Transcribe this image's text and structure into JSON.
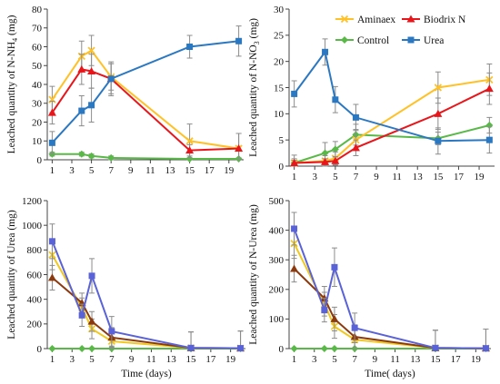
{
  "colors": {
    "Aminaex": "#FFC125",
    "Biodrix N": "#E8161B",
    "Control": "#58B947",
    "Urea": "#2B78C2",
    "Urea_bottom": "#5A62D8",
    "Biodrix_bottom": "#8B3A10",
    "Aminaex_bottom": "#F0C820",
    "errbar": "#8c8c8c"
  },
  "legend": {
    "position": "top-right of the N-NO3 panel",
    "items": [
      {
        "name": "Aminaex",
        "marker": "x",
        "color_key": "Aminaex"
      },
      {
        "name": "Biodrix N",
        "marker": "triangle",
        "color_key": "Biodrix N"
      },
      {
        "name": "Control",
        "marker": "diamond",
        "color_key": "Control"
      },
      {
        "name": "Urea",
        "marker": "square",
        "color_key": "Urea"
      }
    ]
  },
  "chart_data": [
    {
      "type": "line",
      "panel": "top-left",
      "ylabel_pre": "Leached quantity of N-NH",
      "ylabel_sub": "4",
      "ylabel_post": " (mg)",
      "xlabel": "",
      "xlim": [
        0.5,
        20.5
      ],
      "ylim": [
        0,
        80
      ],
      "x_ticks": [
        1,
        3,
        5,
        7,
        9,
        11,
        13,
        15,
        17,
        19
      ],
      "y_ticks": [
        0,
        10,
        20,
        30,
        40,
        50,
        60,
        70,
        80
      ],
      "x": [
        1,
        4,
        5,
        7,
        15,
        20
      ],
      "series": [
        {
          "name": "Aminaex",
          "marker": "x",
          "values": [
            32,
            55,
            58,
            44,
            10,
            6
          ],
          "errors": [
            7,
            8,
            8,
            7,
            9,
            8
          ]
        },
        {
          "name": "Biodrix N",
          "marker": "triangle",
          "values": [
            25,
            48,
            47,
            43,
            5,
            6
          ],
          "errors": [
            6,
            8,
            9,
            8,
            3,
            8
          ]
        },
        {
          "name": "Control",
          "marker": "diamond",
          "values": [
            3,
            3,
            2,
            1,
            0.5,
            0.5
          ],
          "errors": [
            1,
            1,
            1,
            1,
            0.5,
            0.5
          ]
        },
        {
          "name": "Urea",
          "marker": "square",
          "values": [
            9,
            26,
            29,
            43,
            60,
            63
          ],
          "errors": [
            6,
            8,
            9,
            9,
            6,
            8
          ]
        }
      ]
    },
    {
      "type": "line",
      "panel": "top-right",
      "ylabel_pre": "Leached quantity of N-NO",
      "ylabel_sub": "3",
      "ylabel_post": " (mg)",
      "xlabel": "",
      "xlim": [
        0.5,
        20.5
      ],
      "ylim": [
        0,
        30
      ],
      "x_ticks": [
        1,
        3,
        5,
        7,
        9,
        11,
        13,
        15,
        17,
        19
      ],
      "y_ticks": [
        0,
        5,
        10,
        15,
        20,
        25,
        30
      ],
      "x": [
        1,
        4,
        5,
        7,
        15,
        20
      ],
      "series": [
        {
          "name": "Aminaex",
          "marker": "x",
          "values": [
            0.6,
            1.0,
            1.5,
            5.0,
            15,
            16.5
          ],
          "errors": [
            0.8,
            1,
            1.2,
            2,
            3,
            3
          ]
        },
        {
          "name": "Biodrix N",
          "marker": "triangle",
          "values": [
            0.6,
            0.8,
            1.0,
            3.5,
            10,
            14.8
          ],
          "errors": [
            0.5,
            0.6,
            0.8,
            1.5,
            3,
            3
          ]
        },
        {
          "name": "Control",
          "marker": "diamond",
          "values": [
            0.6,
            2.5,
            3.2,
            6.0,
            5.3,
            7.8
          ],
          "errors": [
            1.5,
            2,
            1.5,
            2,
            1.2,
            1.5
          ]
        },
        {
          "name": "Urea",
          "marker": "square",
          "values": [
            13.8,
            21.8,
            12.7,
            9.3,
            4.8,
            5.0
          ],
          "errors": [
            2.5,
            2.5,
            2.5,
            2.5,
            2.5,
            2.5
          ]
        }
      ]
    },
    {
      "type": "line",
      "panel": "bottom-left",
      "ylabel_pre": "Leached quantity of Urea (mg)",
      "ylabel_sub": "",
      "ylabel_post": "",
      "xlabel": "Time (days)",
      "xlim": [
        0.5,
        20.5
      ],
      "ylim": [
        0,
        1200
      ],
      "x_ticks": [
        1,
        3,
        5,
        7,
        9,
        11,
        13,
        15,
        17,
        19
      ],
      "y_ticks": [
        0,
        200,
        400,
        600,
        800,
        1000,
        1200
      ],
      "x": [
        1,
        4,
        5,
        7,
        15,
        20
      ],
      "series": [
        {
          "name": "Aminaex",
          "marker": "x",
          "values": [
            760,
            330,
            160,
            60,
            5,
            3
          ],
          "errors": [
            120,
            80,
            80,
            80,
            130,
            140
          ]
        },
        {
          "name": "Biodrix N",
          "marker": "triangle",
          "values": [
            575,
            370,
            220,
            90,
            5,
            3
          ],
          "errors": [
            100,
            80,
            80,
            80,
            130,
            140
          ]
        },
        {
          "name": "Control",
          "marker": "diamond",
          "values": [
            0,
            0,
            0,
            0,
            0,
            0
          ],
          "errors": [
            0,
            0,
            0,
            0,
            0,
            0
          ]
        },
        {
          "name": "Urea",
          "marker": "square",
          "values": [
            870,
            270,
            590,
            140,
            5,
            3
          ],
          "errors": [
            140,
            90,
            140,
            120,
            130,
            140
          ]
        }
      ]
    },
    {
      "type": "line",
      "panel": "bottom-right",
      "ylabel_pre": "Leached quantity of N-Urea (mg)",
      "ylabel_sub": "",
      "ylabel_post": "",
      "xlabel": "Time( days)",
      "xlim": [
        0.5,
        20.5
      ],
      "ylim": [
        0,
        500
      ],
      "x_ticks": [
        1,
        3,
        5,
        7,
        9,
        11,
        13,
        15,
        17,
        19
      ],
      "y_ticks": [
        0,
        100,
        200,
        300,
        400,
        500
      ],
      "x": [
        1,
        4,
        5,
        7,
        15,
        20
      ],
      "series": [
        {
          "name": "Aminaex",
          "marker": "x",
          "values": [
            355,
            150,
            75,
            30,
            2,
            1
          ],
          "errors": [
            50,
            40,
            40,
            40,
            60,
            65
          ]
        },
        {
          "name": "Biodrix N",
          "marker": "triangle",
          "values": [
            270,
            170,
            100,
            40,
            2,
            1
          ],
          "errors": [
            45,
            40,
            40,
            40,
            60,
            65
          ]
        },
        {
          "name": "Control",
          "marker": "diamond",
          "values": [
            0,
            0,
            0,
            0,
            0,
            0
          ],
          "errors": [
            0,
            0,
            0,
            0,
            0,
            0
          ]
        },
        {
          "name": "Urea",
          "marker": "square",
          "values": [
            405,
            130,
            275,
            70,
            2,
            1
          ],
          "errors": [
            55,
            40,
            65,
            50,
            60,
            65
          ]
        }
      ]
    }
  ]
}
